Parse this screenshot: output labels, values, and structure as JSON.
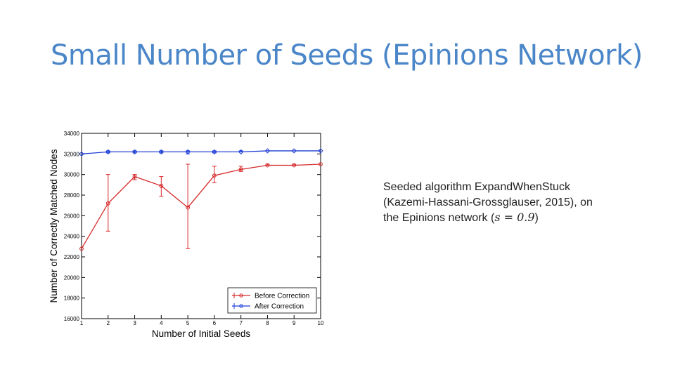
{
  "slide": {
    "title": "Small Number of Seeds (Epinions Network)",
    "caption": {
      "line1": "Seeded algorithm ExpandWhenStuck",
      "line2": "(Kazemi-Hassani-Grossglauser, 2015), on",
      "line3_prefix": "the Epinions network (",
      "line3_math": "s = 0.9",
      "line3_suffix": ")"
    }
  },
  "chart_data": {
    "type": "line",
    "xlabel": "Number of Initial Seeds",
    "ylabel": "Number of Correctly Matched Nodes",
    "xlim": [
      1,
      10
    ],
    "ylim": [
      16000,
      34000
    ],
    "x_ticks": [
      1,
      2,
      3,
      4,
      5,
      6,
      7,
      8,
      9,
      10
    ],
    "y_ticks": [
      16000,
      18000,
      20000,
      22000,
      24000,
      26000,
      28000,
      30000,
      32000,
      34000
    ],
    "x": [
      1,
      2,
      3,
      4,
      5,
      6,
      7,
      8,
      9,
      10
    ],
    "legend_position": "bottom-right",
    "grid": false,
    "series": [
      {
        "name": "Before Correction",
        "color": "#d62728",
        "values": [
          22800,
          27200,
          29800,
          28900,
          26800,
          29900,
          30500,
          30900,
          30900,
          31000
        ],
        "err_low": [
          22800,
          24500,
          29500,
          27900,
          22800,
          29200,
          30300,
          30900,
          30900,
          31000
        ],
        "err_high": [
          22800,
          30000,
          30000,
          29800,
          31000,
          30800,
          30800,
          31000,
          31000,
          31000
        ]
      },
      {
        "name": "After Correction",
        "color": "#1f3fd6",
        "values": [
          32000,
          32200,
          32200,
          32200,
          32200,
          32200,
          32200,
          32300,
          32300,
          32300
        ],
        "err_low": [
          32000,
          32100,
          32100,
          32100,
          32000,
          32100,
          32200,
          32300,
          32300,
          32300
        ],
        "err_high": [
          32000,
          32300,
          32300,
          32300,
          32300,
          32300,
          32300,
          32300,
          32300,
          32300
        ]
      }
    ]
  }
}
